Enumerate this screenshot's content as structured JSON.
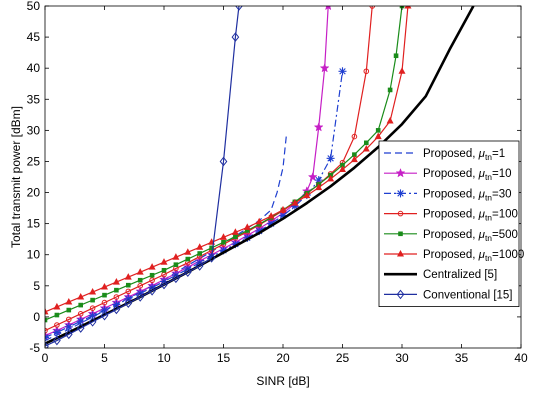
{
  "chart_data": {
    "type": "line",
    "title": "",
    "xlabel": "SINR [dB]",
    "ylabel": "Total transmit power [dBm]",
    "xlim": [
      0,
      40
    ],
    "ylim": [
      -5,
      50
    ],
    "xticks": [
      0,
      5,
      10,
      15,
      20,
      25,
      30,
      35,
      40
    ],
    "yticks": [
      -5,
      0,
      5,
      10,
      15,
      20,
      25,
      30,
      35,
      40,
      45,
      50
    ],
    "grid": false,
    "legend_position": "bottom-right",
    "series": [
      {
        "name": "Proposed, μtn=1",
        "legend_base": "Proposed, ",
        "legend_mu": "μ",
        "legend_sub": "tn",
        "legend_val": "=1",
        "color": "#1f3fd0",
        "dash": "dashed",
        "marker": "none",
        "width": 1.2,
        "points": [
          [
            0,
            -3.8
          ],
          [
            2,
            -2
          ],
          [
            4,
            0
          ],
          [
            6,
            2
          ],
          [
            8,
            4
          ],
          [
            10,
            6
          ],
          [
            12,
            8.3
          ],
          [
            14,
            10.5
          ],
          [
            16,
            13
          ],
          [
            18,
            15.5
          ],
          [
            19,
            17.2
          ],
          [
            19.5,
            20
          ],
          [
            20,
            24
          ],
          [
            20.3,
            29.5
          ]
        ]
      },
      {
        "name": "Proposed, μtn=10",
        "legend_base": "Proposed, ",
        "legend_mu": "μ",
        "legend_sub": "tn",
        "legend_val": "=10",
        "color": "#c61fc6",
        "dash": "solid",
        "marker": "star",
        "width": 1.2,
        "points": [
          [
            0,
            -3.0
          ],
          [
            1,
            -2.2
          ],
          [
            2,
            -1.3
          ],
          [
            3,
            -0.4
          ],
          [
            4,
            0.5
          ],
          [
            5,
            1.4
          ],
          [
            6,
            2.3
          ],
          [
            7,
            3.2
          ],
          [
            8,
            4.1
          ],
          [
            9,
            5.0
          ],
          [
            10,
            6.0
          ],
          [
            11,
            7.0
          ],
          [
            12,
            8.0
          ],
          [
            13,
            9.0
          ],
          [
            14,
            10.0
          ],
          [
            15,
            11.0
          ],
          [
            16,
            12.0
          ],
          [
            17,
            13.1
          ],
          [
            18,
            14.2
          ],
          [
            19,
            15.4
          ],
          [
            20,
            16.7
          ],
          [
            21,
            18.2
          ],
          [
            22,
            20.2
          ],
          [
            22.5,
            22.5
          ],
          [
            23,
            30.5
          ],
          [
            23.5,
            40
          ],
          [
            23.8,
            50
          ]
        ]
      },
      {
        "name": "Proposed, μtn=30",
        "legend_base": "Proposed, ",
        "legend_mu": "μ",
        "legend_sub": "tn",
        "legend_val": "=30",
        "color": "#1f3fd0",
        "dash": "dashdot",
        "marker": "asterisk",
        "width": 1.2,
        "points": [
          [
            0,
            -3.3
          ],
          [
            1,
            -2.5
          ],
          [
            2,
            -1.6
          ],
          [
            3,
            -0.7
          ],
          [
            4,
            0.2
          ],
          [
            5,
            1.1
          ],
          [
            6,
            2.0
          ],
          [
            7,
            2.9
          ],
          [
            8,
            3.8
          ],
          [
            9,
            4.7
          ],
          [
            10,
            5.7
          ],
          [
            11,
            6.7
          ],
          [
            12,
            7.7
          ],
          [
            13,
            8.7
          ],
          [
            14,
            9.7
          ],
          [
            15,
            10.7
          ],
          [
            16,
            11.7
          ],
          [
            17,
            12.7
          ],
          [
            18,
            13.8
          ],
          [
            19,
            15.0
          ],
          [
            20,
            16.3
          ],
          [
            21,
            17.8
          ],
          [
            22,
            19.6
          ],
          [
            23,
            22.0
          ],
          [
            24,
            25.5
          ],
          [
            25,
            39.5
          ]
        ]
      },
      {
        "name": "Proposed, μtn=100",
        "legend_base": "Proposed, ",
        "legend_mu": "μ",
        "legend_sub": "tn",
        "legend_val": "=100",
        "color": "#e02020",
        "dash": "solid",
        "marker": "circle",
        "width": 1.2,
        "points": [
          [
            0,
            -2.2
          ],
          [
            1,
            -1.3
          ],
          [
            2,
            -0.4
          ],
          [
            3,
            0.5
          ],
          [
            4,
            1.4
          ],
          [
            5,
            2.3
          ],
          [
            6,
            3.2
          ],
          [
            7,
            4.1
          ],
          [
            8,
            5.0
          ],
          [
            9,
            5.9
          ],
          [
            10,
            6.8
          ],
          [
            11,
            7.8
          ],
          [
            12,
            8.7
          ],
          [
            13,
            9.7
          ],
          [
            14,
            10.7
          ],
          [
            15,
            11.7
          ],
          [
            16,
            12.7
          ],
          [
            17,
            13.7
          ],
          [
            18,
            14.8
          ],
          [
            19,
            15.9
          ],
          [
            20,
            17.1
          ],
          [
            21,
            18.4
          ],
          [
            22,
            19.8
          ],
          [
            23,
            21.3
          ],
          [
            24,
            23.0
          ],
          [
            25,
            24.8
          ],
          [
            26,
            29.0
          ],
          [
            27,
            39.5
          ],
          [
            27.5,
            50
          ]
        ]
      },
      {
        "name": "Proposed, μtn=500",
        "legend_base": "Proposed, ",
        "legend_mu": "μ",
        "legend_sub": "tn",
        "legend_val": "=500",
        "color": "#1a8c1a",
        "dash": "solid",
        "marker": "square",
        "width": 1.2,
        "points": [
          [
            0,
            -0.5
          ],
          [
            1,
            0.3
          ],
          [
            2,
            1.1
          ],
          [
            3,
            1.9
          ],
          [
            4,
            2.7
          ],
          [
            5,
            3.5
          ],
          [
            6,
            4.3
          ],
          [
            7,
            5.1
          ],
          [
            8,
            5.9
          ],
          [
            9,
            6.7
          ],
          [
            10,
            7.5
          ],
          [
            11,
            8.4
          ],
          [
            12,
            9.3
          ],
          [
            13,
            10.2
          ],
          [
            14,
            11.1
          ],
          [
            15,
            12.0
          ],
          [
            16,
            12.9
          ],
          [
            17,
            13.9
          ],
          [
            18,
            14.9
          ],
          [
            19,
            16.0
          ],
          [
            20,
            17.2
          ],
          [
            21,
            18.5
          ],
          [
            22,
            19.9
          ],
          [
            23,
            21.3
          ],
          [
            24,
            22.8
          ],
          [
            25,
            24.4
          ],
          [
            26,
            26.1
          ],
          [
            27,
            28.0
          ],
          [
            28,
            30.0
          ],
          [
            29,
            36.5
          ],
          [
            29.5,
            42
          ],
          [
            30,
            50
          ]
        ]
      },
      {
        "name": "Proposed, μtn=1000",
        "legend_base": "Proposed, ",
        "legend_mu": "μ",
        "legend_sub": "tn",
        "legend_val": "=1000",
        "color": "#e02020",
        "dash": "solid",
        "marker": "triangle",
        "width": 1.2,
        "points": [
          [
            0,
            0.8
          ],
          [
            1,
            1.6
          ],
          [
            2,
            2.4
          ],
          [
            3,
            3.2
          ],
          [
            4,
            4.0
          ],
          [
            5,
            4.8
          ],
          [
            6,
            5.6
          ],
          [
            7,
            6.4
          ],
          [
            8,
            7.2
          ],
          [
            9,
            8.0
          ],
          [
            10,
            8.8
          ],
          [
            11,
            9.6
          ],
          [
            12,
            10.4
          ],
          [
            13,
            11.2
          ],
          [
            14,
            12.0
          ],
          [
            15,
            12.8
          ],
          [
            16,
            13.6
          ],
          [
            17,
            14.4
          ],
          [
            18,
            15.3
          ],
          [
            19,
            16.2
          ],
          [
            20,
            17.2
          ],
          [
            21,
            18.3
          ],
          [
            22,
            19.5
          ],
          [
            23,
            20.8
          ],
          [
            24,
            22.2
          ],
          [
            25,
            23.7
          ],
          [
            26,
            25.3
          ],
          [
            27,
            27.0
          ],
          [
            28,
            29.0
          ],
          [
            29,
            31.5
          ],
          [
            30,
            39.5
          ],
          [
            30.5,
            50
          ]
        ]
      },
      {
        "name": "Centralized [5]",
        "legend_base": "Centralized [5]",
        "color": "#000000",
        "dash": "solid",
        "marker": "none",
        "width": 2.6,
        "points": [
          [
            0,
            -4.3
          ],
          [
            2,
            -2.5
          ],
          [
            4,
            -0.6
          ],
          [
            6,
            1.3
          ],
          [
            8,
            3.2
          ],
          [
            10,
            5.2
          ],
          [
            12,
            7.2
          ],
          [
            14,
            9.3
          ],
          [
            16,
            11.4
          ],
          [
            18,
            13.5
          ],
          [
            20,
            15.8
          ],
          [
            22,
            18.3
          ],
          [
            24,
            21.0
          ],
          [
            26,
            24.0
          ],
          [
            28,
            27.3
          ],
          [
            30,
            31.0
          ],
          [
            32,
            35.5
          ],
          [
            34,
            43.0
          ],
          [
            36,
            50.0
          ]
        ]
      },
      {
        "name": "Conventional [15]",
        "legend_base": "Conventional [15]",
        "color": "#1f2fa0",
        "dash": "solid",
        "marker": "diamond",
        "width": 1.2,
        "points": [
          [
            0,
            -4.7
          ],
          [
            1,
            -3.8
          ],
          [
            2,
            -2.8
          ],
          [
            3,
            -1.8
          ],
          [
            4,
            -0.8
          ],
          [
            5,
            0.2
          ],
          [
            6,
            1.2
          ],
          [
            7,
            2.2
          ],
          [
            8,
            3.2
          ],
          [
            9,
            4.2
          ],
          [
            10,
            5.2
          ],
          [
            11,
            6.2
          ],
          [
            12,
            7.2
          ],
          [
            13,
            8.2
          ],
          [
            14,
            9.5
          ],
          [
            15,
            25
          ],
          [
            16,
            45
          ],
          [
            16.3,
            50
          ]
        ]
      }
    ]
  }
}
